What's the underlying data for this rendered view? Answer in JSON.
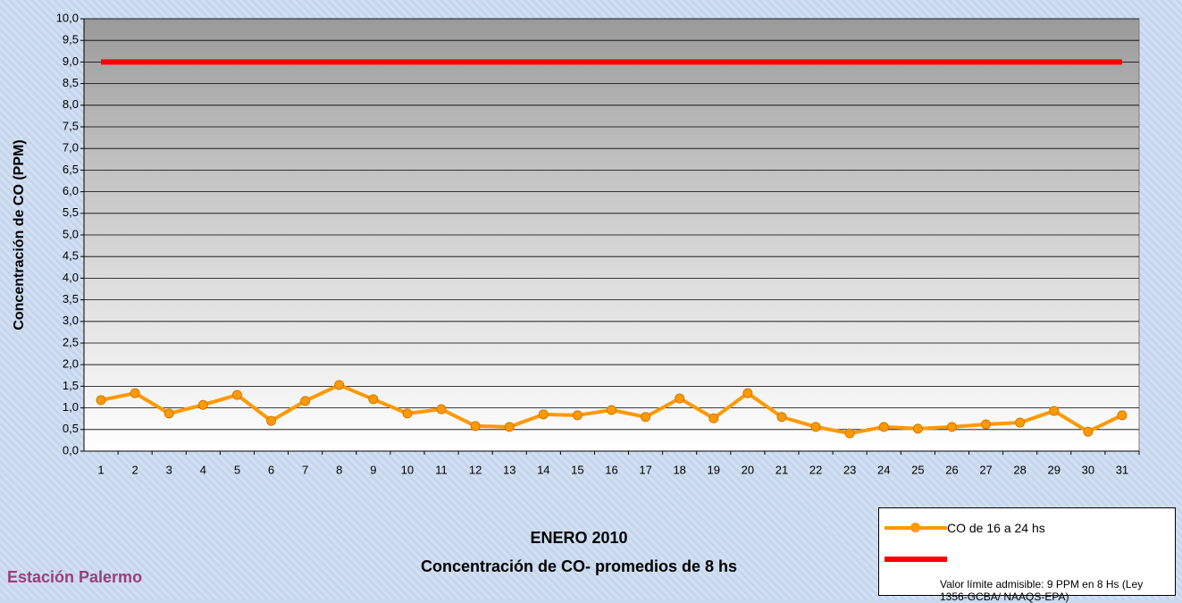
{
  "chart_data": {
    "type": "line",
    "title": "ENERO 2010",
    "subtitle": "Concentración de CO- promedios de 8 hs",
    "station": "Estación Palermo",
    "y_label": "Concentración de CO (PPM)",
    "categories": [
      "1",
      "2",
      "3",
      "4",
      "5",
      "6",
      "7",
      "8",
      "9",
      "10",
      "11",
      "12",
      "13",
      "14",
      "15",
      "16",
      "17",
      "18",
      "19",
      "20",
      "21",
      "22",
      "23",
      "24",
      "25",
      "26",
      "27",
      "28",
      "29",
      "30",
      "31"
    ],
    "series": [
      {
        "name": "CO de 16 a 24 hs",
        "color": "#ff9900",
        "marker": true,
        "values": [
          1.18,
          1.34,
          0.87,
          1.07,
          1.3,
          0.7,
          1.16,
          1.53,
          1.2,
          0.87,
          0.97,
          0.58,
          0.56,
          0.85,
          0.83,
          0.95,
          0.79,
          1.22,
          0.76,
          1.34,
          0.79,
          0.56,
          0.41,
          0.56,
          0.52,
          0.56,
          0.62,
          0.66,
          0.93,
          0.45,
          0.83
        ]
      },
      {
        "name": "Valor límite admisible: 9 PPM en 8 Hs (Ley 1356-GCBA/ NAAQS-EPA)",
        "color": "#ff0000",
        "marker": false,
        "values": [
          9,
          9,
          9,
          9,
          9,
          9,
          9,
          9,
          9,
          9,
          9,
          9,
          9,
          9,
          9,
          9,
          9,
          9,
          9,
          9,
          9,
          9,
          9,
          9,
          9,
          9,
          9,
          9,
          9,
          9,
          9
        ]
      }
    ],
    "ylim": [
      0,
      10
    ],
    "yticks": [
      {
        "value": 0,
        "label": "0,0"
      },
      {
        "value": 0.5,
        "label": "0,5"
      },
      {
        "value": 1,
        "label": "1,0"
      },
      {
        "value": 1.5,
        "label": "1,5"
      },
      {
        "value": 2,
        "label": "2,0"
      },
      {
        "value": 2.5,
        "label": "2,5"
      },
      {
        "value": 3,
        "label": "3,0"
      },
      {
        "value": 3.5,
        "label": "3,5"
      },
      {
        "value": 4,
        "label": "4,0"
      },
      {
        "value": 4.5,
        "label": "4,5"
      },
      {
        "value": 5,
        "label": "5,0"
      },
      {
        "value": 5.5,
        "label": "5,5"
      },
      {
        "value": 6,
        "label": "6,0"
      },
      {
        "value": 6.5,
        "label": "6,5"
      },
      {
        "value": 7,
        "label": "7,0"
      },
      {
        "value": 7.5,
        "label": "7,5"
      },
      {
        "value": 8,
        "label": "8,0"
      },
      {
        "value": 8.5,
        "label": "8,5"
      },
      {
        "value": 9,
        "label": "9,0"
      },
      {
        "value": 9.5,
        "label": "9,5"
      },
      {
        "value": 10,
        "label": "10,0"
      }
    ],
    "grid": true
  }
}
